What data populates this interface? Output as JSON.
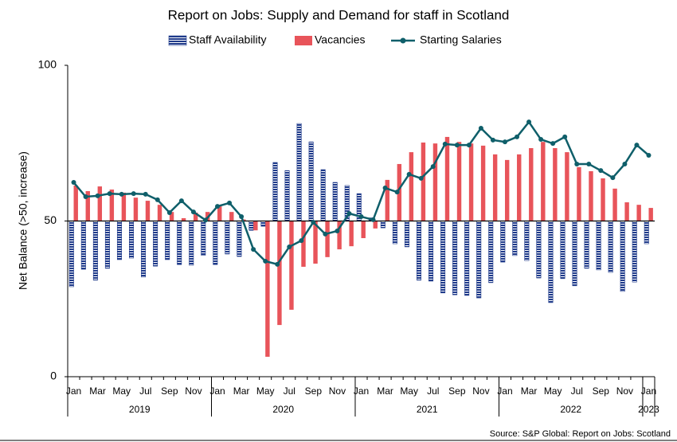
{
  "chart_data": {
    "type": "bar_line",
    "title": "Report on Jobs: Supply and Demand for staff in Scotland",
    "y_label": "Net Balance (>50, increase)",
    "source": "Source: S&P Global: Report on Jobs: Scotland",
    "categories": [
      "Jan",
      null,
      "Mar",
      null,
      "May",
      null,
      "Jul",
      null,
      "Sep",
      null,
      "Nov",
      null,
      "Jan",
      null,
      "Mar",
      null,
      "May",
      null,
      "Jul",
      null,
      "Sep",
      null,
      "Nov",
      null,
      "Jan",
      null,
      "Mar",
      null,
      "May",
      null,
      "Jul",
      null,
      "Sep",
      null,
      "Nov",
      null,
      "Jan",
      null,
      "Mar",
      null,
      "May",
      null,
      "Jul",
      null,
      "Sep",
      null,
      "Nov",
      null,
      "Jan"
    ],
    "years": [
      "2019",
      "2020",
      "2021",
      "2022",
      "2023"
    ],
    "baseline": 50,
    "ylim": [
      0,
      100
    ],
    "yticks": [
      0,
      50,
      100
    ],
    "legend": "top",
    "series": [
      {
        "name": "Staff Availability",
        "type": "bar",
        "color": "#1f3a8a",
        "pattern": "striped",
        "values": [
          28.9,
          34.5,
          31,
          34.8,
          37.6,
          38.1,
          32,
          35.5,
          37.6,
          36,
          35.8,
          39,
          36,
          39.4,
          38.6,
          47,
          48.3,
          68.8,
          66.2,
          81.3,
          75.4,
          66.5,
          62.4,
          61.4,
          58.8,
          51,
          47.8,
          42.7,
          41.7,
          31,
          30.7,
          26.9,
          26.3,
          26.1,
          25.3,
          30.2,
          36.8,
          38.9,
          37.3,
          31.7,
          23.8,
          31.5,
          29.2,
          34.8,
          34.3,
          33.5,
          27.4,
          30.4,
          42.7
        ]
      },
      {
        "name": "Vacancies",
        "type": "bar",
        "color": "#e8545a",
        "values": [
          61.4,
          59.6,
          61.1,
          60.1,
          59.1,
          57.5,
          56.5,
          55.2,
          52.9,
          50.9,
          52.7,
          52.9,
          54.7,
          52.9,
          50.5,
          47,
          6.4,
          16.6,
          21.5,
          35.3,
          36.3,
          38.4,
          40.9,
          41.9,
          44.5,
          47.6,
          63.2,
          68.3,
          72.1,
          75.2,
          74.9,
          77,
          75.4,
          74.9,
          74.2,
          71.4,
          69.6,
          71.4,
          73.4,
          75.4,
          73.4,
          72.1,
          67.3,
          66,
          63.7,
          60.4,
          56,
          55.2,
          54.2
        ]
      },
      {
        "name": "Starting Salaries",
        "type": "line",
        "color": "#0f5f6a",
        "values": [
          62.4,
          57.8,
          58.1,
          58.8,
          58.6,
          58.8,
          58.6,
          56.8,
          52.7,
          56.5,
          52.9,
          50.3,
          54.7,
          55.8,
          51.4,
          40.9,
          37.1,
          36.1,
          41.7,
          43.7,
          49.6,
          45.8,
          46.8,
          52.4,
          51.4,
          50.4,
          60.6,
          59.3,
          65,
          63.7,
          67.5,
          74.7,
          74.4,
          74.4,
          79.8,
          76,
          75.4,
          77,
          81.8,
          76.2,
          74.9,
          77,
          68.3,
          68.3,
          66.2,
          63.9,
          68.3,
          74.4,
          71.1
        ]
      }
    ]
  }
}
